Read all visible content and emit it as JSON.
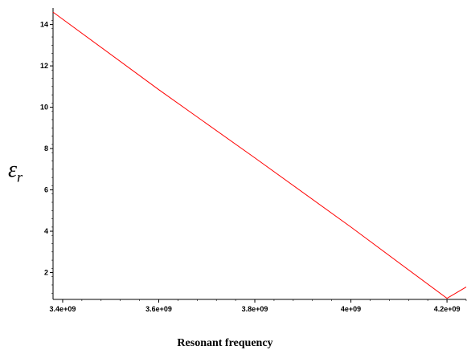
{
  "chart_data": {
    "type": "line",
    "title": "",
    "xlabel": "Resonant frequency",
    "ylabel": {
      "symbol": "ε",
      "subscript": "r"
    },
    "x_tick_labels": [
      "3.4e+09",
      "3.6e+09",
      "3.8e+09",
      "4e+09",
      "4.2e+09"
    ],
    "x_ticks": [
      3400000000,
      3600000000,
      3800000000,
      4000000000,
      4200000000
    ],
    "y_ticks": [
      2,
      4,
      6,
      8,
      10,
      12,
      14
    ],
    "y_tick_labels": [
      "2",
      "4",
      "6",
      "8",
      "10",
      "12",
      "14"
    ],
    "xlim": [
      3380000000,
      4240000000
    ],
    "ylim": [
      0.7,
      14.8
    ],
    "grid": false,
    "series": [
      {
        "color": "#ff0000",
        "x": [
          3380000000,
          3600000000,
          3800000000,
          4000000000,
          4200000000,
          4240000000
        ],
        "y": [
          14.6,
          10.85,
          7.55,
          4.2,
          0.75,
          1.3
        ]
      }
    ]
  }
}
